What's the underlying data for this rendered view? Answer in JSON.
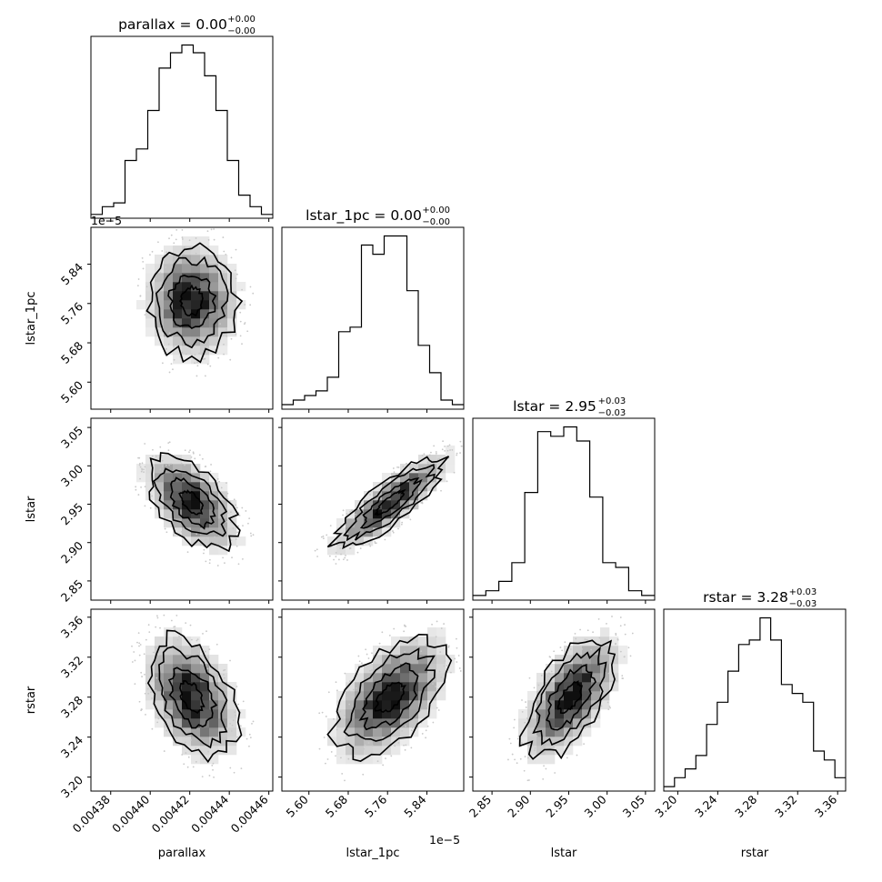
{
  "chart_data": {
    "type": "corner",
    "parameters": [
      "parallax",
      "lstar_1pc",
      "lstar",
      "rstar"
    ],
    "axis_labels": [
      "parallax",
      "lstar_1pc",
      "lstar",
      "rstar"
    ],
    "titles": [
      {
        "param": "parallax",
        "prefix": "parallax = ",
        "median": "0.00",
        "plus": "+0.00",
        "minus": "−0.00"
      },
      {
        "param": "lstar_1pc",
        "prefix": "lstar_1pc = ",
        "median": "0.00",
        "plus": "+0.00",
        "minus": "−0.00"
      },
      {
        "param": "lstar",
        "prefix": "lstar = ",
        "median": "2.95",
        "plus": "+0.03",
        "minus": "−0.03"
      },
      {
        "param": "rstar",
        "prefix": "rstar = ",
        "median": "3.28",
        "plus": "+0.03",
        "minus": "−0.03"
      }
    ],
    "offset_texts": {
      "lstar_1pc_y": "1e−5",
      "lstar_1pc_x": "1e−5"
    },
    "ranges": {
      "parallax": [
        0.00437,
        0.004462
      ],
      "lstar_1pc": [
        5.545,
        5.915
      ],
      "lstar": [
        2.825,
        3.062
      ],
      "rstar": [
        3.186,
        3.368
      ]
    },
    "ticks": {
      "parallax": {
        "values": [
          0.00438,
          0.0044,
          0.00442,
          0.00444,
          0.00446
        ],
        "labels": [
          "0.00438",
          "0.00440",
          "0.00442",
          "0.00444",
          "0.00446"
        ]
      },
      "lstar_1pc": {
        "values": [
          5.6,
          5.68,
          5.76,
          5.84
        ],
        "labels": [
          "5.60",
          "5.68",
          "5.76",
          "5.84"
        ]
      },
      "lstar": {
        "values": [
          2.85,
          2.9,
          2.95,
          3.0,
          3.05
        ],
        "labels": [
          "2.85",
          "2.90",
          "2.95",
          "3.00",
          "3.05"
        ]
      },
      "rstar": {
        "values": [
          3.2,
          3.24,
          3.28,
          3.32,
          3.36
        ],
        "labels": [
          "3.20",
          "3.24",
          "3.28",
          "3.32",
          "3.36"
        ]
      }
    },
    "histograms": {
      "parallax": [
        1,
        3,
        4,
        15,
        18,
        28,
        39,
        43,
        45,
        43,
        37,
        28,
        15,
        6,
        3,
        1
      ],
      "lstar_1pc": [
        1,
        2,
        3,
        4,
        7,
        17,
        18,
        36,
        34,
        38,
        38,
        26,
        14,
        8,
        2,
        1
      ],
      "lstar": [
        1,
        2,
        4,
        8,
        23,
        36,
        35,
        37,
        34,
        22,
        8,
        7,
        2,
        1
      ],
      "rstar": [
        1,
        3,
        5,
        8,
        15,
        20,
        27,
        33,
        34,
        39,
        34,
        24,
        22,
        20,
        9,
        7,
        3
      ]
    },
    "correlations": {
      "lstar_1pc|parallax": 0.0,
      "lstar|parallax": -0.55,
      "lstar|lstar_1pc": 0.85,
      "rstar|parallax": -0.4,
      "rstar|lstar_1pc": 0.55,
      "rstar|lstar": 0.6
    },
    "sigmas": {
      "parallax": 1.12e-05,
      "lstar_1pc": 0.056,
      "lstar": 0.03,
      "rstar": 0.03
    },
    "centers": {
      "parallax": 0.004421,
      "lstar_1pc": 5.765,
      "lstar": 2.952,
      "rstar": 3.28
    },
    "grid": false,
    "legend": "none"
  }
}
